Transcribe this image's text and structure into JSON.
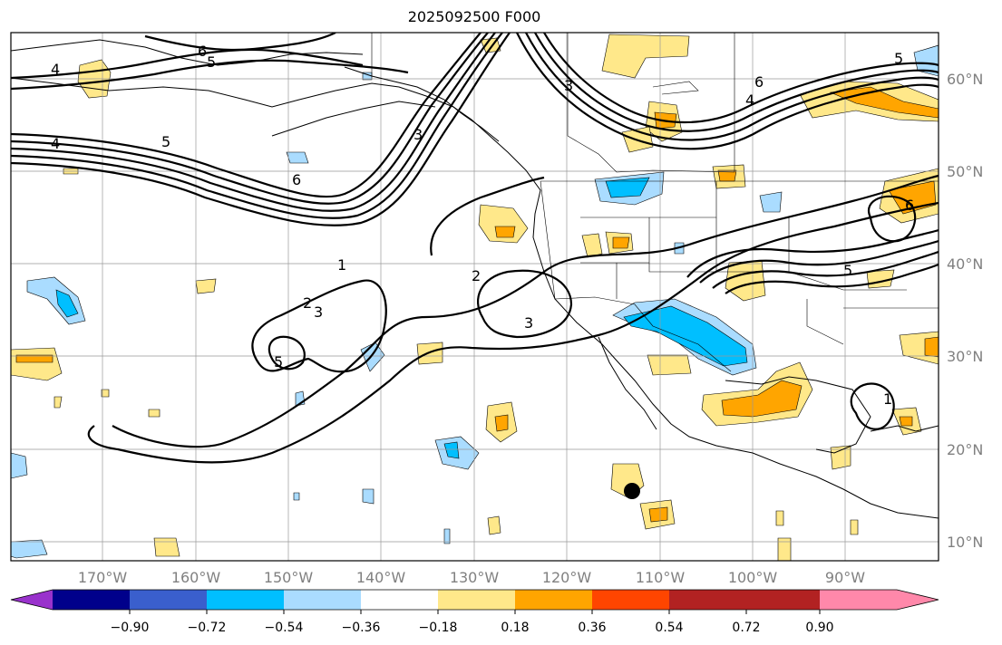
{
  "title": "2025092500 F000",
  "map": {
    "lat_labels": [
      "60°N",
      "50°N",
      "40°N",
      "30°N",
      "20°N",
      "10°N"
    ],
    "lon_labels": [
      "170°W",
      "160°W",
      "150°W",
      "140°W",
      "130°W",
      "120°W",
      "110°W",
      "100°W",
      "90°W"
    ],
    "contour_labels": [
      "4",
      "6",
      "5",
      "4",
      "5",
      "6",
      "3",
      "5",
      "3",
      "6",
      "4",
      "5",
      "6",
      "1",
      "2",
      "3",
      "2",
      "3",
      "5",
      "1"
    ],
    "marker": "storm-center-dot"
  },
  "colorbar": {
    "colors": [
      "#9932cc",
      "#00008b",
      "#3a5fcd",
      "#00bfff",
      "#aadcff",
      "#ffffff",
      "#ffe88a",
      "#ffa500",
      "#ff4500",
      "#b22222",
      "#ff88aa"
    ],
    "tick_labels": [
      "−0.90",
      "−0.72",
      "−0.54",
      "−0.36",
      "−0.18",
      "0.18",
      "0.36",
      "0.54",
      "0.72",
      "0.90"
    ]
  }
}
